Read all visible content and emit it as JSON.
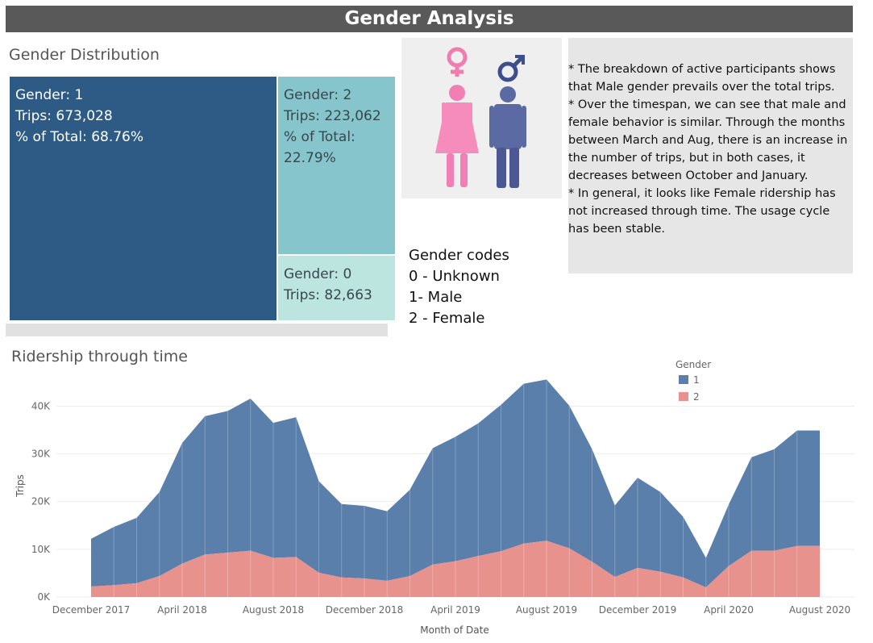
{
  "header": {
    "title": "Gender Analysis"
  },
  "distribution": {
    "title": "Gender Distribution",
    "cells": [
      {
        "gender": "Gender: 1",
        "trips": "Trips: 673,028",
        "pct_label": "% of Total:",
        "pct_value": "68.76%",
        "color": "#2e5a86"
      },
      {
        "gender": "Gender: 2",
        "trips": "Trips: 223,062",
        "pct_label": "% of Total:",
        "pct_value": "22.79%",
        "color": "#85c5cb"
      },
      {
        "gender": "Gender: 0",
        "trips": "Trips: 82,663",
        "color": "#bde5df"
      }
    ]
  },
  "icons": {
    "female": "female-figure-icon",
    "male": "male-figure-icon"
  },
  "notes": [
    "* The breakdown of active participants shows that Male gender prevails over the total trips.",
    "* Over the timespan, we can see that male and female behavior is similar. Through the months between March and Aug, there is an increase in the number of trips, but in both cases, it decreases between October and January.",
    "* In general, it looks like Female ridership has not increased through time. The usage cycle has been stable."
  ],
  "codes": {
    "title": "Gender codes",
    "items": [
      "0 - Unknown",
      "1- Male",
      "2 - Female"
    ]
  },
  "chart_data": {
    "type": "area",
    "title": "Ridership through time",
    "xlabel": "Month of Date",
    "ylabel": "Trips",
    "x_ticks": [
      "December 2017",
      "April 2018",
      "August 2018",
      "December 2018",
      "April 2019",
      "August 2019",
      "December 2019",
      "April 2020",
      "August 2020"
    ],
    "y_ticks": [
      "0K",
      "10K",
      "20K",
      "30K",
      "40K"
    ],
    "ylim": [
      0,
      46000
    ],
    "legend": {
      "title": "Gender",
      "placement": "top-right"
    },
    "stacked": true,
    "x": [
      "2017-12",
      "2018-01",
      "2018-02",
      "2018-03",
      "2018-04",
      "2018-05",
      "2018-06",
      "2018-07",
      "2018-08",
      "2018-09",
      "2018-10",
      "2018-11",
      "2018-12",
      "2019-01",
      "2019-02",
      "2019-03",
      "2019-04",
      "2019-05",
      "2019-06",
      "2019-07",
      "2019-08",
      "2019-09",
      "2019-10",
      "2019-11",
      "2019-12",
      "2020-01",
      "2020-02",
      "2020-03",
      "2020-04",
      "2020-05",
      "2020-06",
      "2020-07",
      "2020-08"
    ],
    "series": [
      {
        "name": "2",
        "color": "#e8928e",
        "values": [
          2200,
          2500,
          2900,
          4400,
          7000,
          8900,
          9300,
          9700,
          8200,
          8400,
          5100,
          4100,
          3900,
          3400,
          4400,
          6800,
          7500,
          8600,
          9600,
          11200,
          11800,
          10200,
          7400,
          4200,
          6100,
          5300,
          4100,
          2000,
          6500,
          9700,
          9700,
          10700,
          10700
        ]
      },
      {
        "name": "1",
        "color": "#5a7fab",
        "values": [
          10000,
          12200,
          13700,
          17600,
          25300,
          29000,
          29700,
          31900,
          28300,
          29300,
          19200,
          15400,
          15200,
          14600,
          18100,
          24400,
          26100,
          27800,
          30700,
          33500,
          33800,
          29900,
          23600,
          15000,
          18900,
          16700,
          12700,
          6200,
          12900,
          19600,
          21300,
          24200,
          24200
        ]
      }
    ]
  }
}
